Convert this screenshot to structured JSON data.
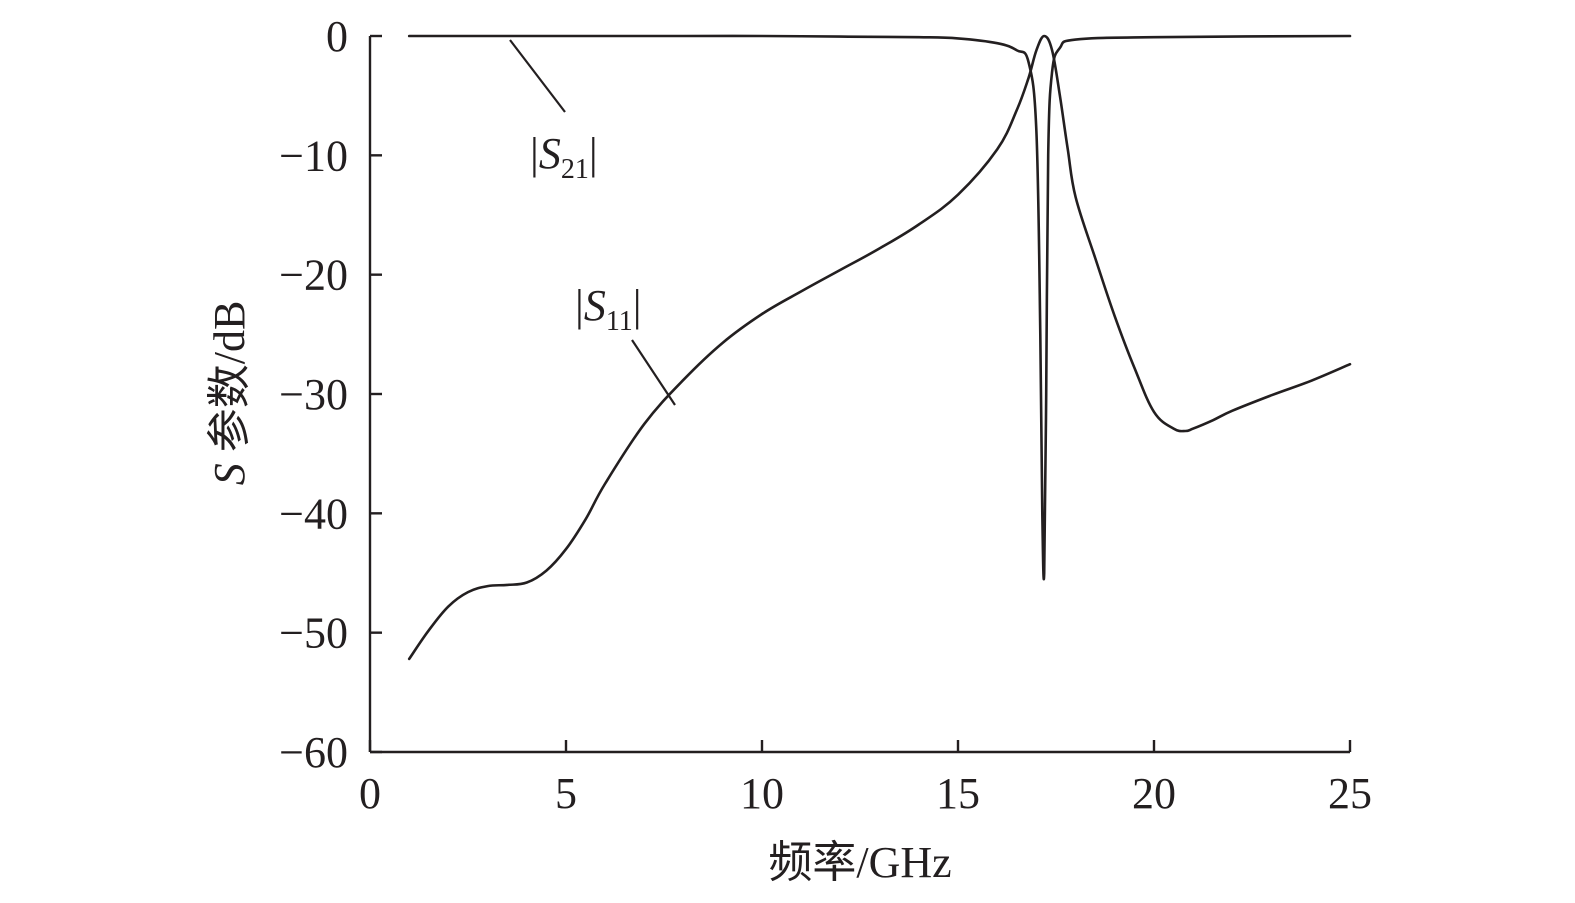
{
  "chart_data": {
    "type": "line",
    "xlabel": "频率/GHz",
    "ylabel": {
      "italic": "S",
      "text": " 参数/dB"
    },
    "xlim": [
      0,
      25
    ],
    "ylim": [
      -60,
      0
    ],
    "xticks": [
      0,
      5,
      10,
      15,
      20,
      25
    ],
    "yticks": [
      0,
      -10,
      -20,
      -30,
      -40,
      -50,
      -60
    ],
    "xtick_labels": [
      "0",
      "5",
      "10",
      "15",
      "20",
      "25"
    ],
    "ytick_labels": [
      "0",
      "−10",
      "−20",
      "−30",
      "−40",
      "−50",
      "−60"
    ],
    "grid": false,
    "legend": "none",
    "series": [
      {
        "name": "|S21|",
        "x": [
          1,
          3,
          5,
          8,
          10,
          12,
          14,
          15,
          16,
          16.5,
          16.8,
          17.0,
          17.1,
          17.15,
          17.2,
          17.25,
          17.3,
          17.4,
          17.6,
          18,
          20,
          25
        ],
        "y": [
          0,
          0,
          0,
          0,
          0,
          -0.05,
          -0.1,
          -0.2,
          -0.6,
          -1.2,
          -2.2,
          -8,
          -25,
          -40,
          -45,
          -30,
          -10,
          -3,
          -1,
          -0.3,
          -0.1,
          0
        ]
      },
      {
        "name": "|S11|",
        "x": [
          1,
          1.5,
          2,
          2.5,
          3,
          3.5,
          4,
          4.5,
          5,
          5.5,
          6,
          7,
          8,
          9,
          10,
          11,
          12,
          13,
          14,
          15,
          16,
          16.5,
          16.8,
          17.0,
          17.2,
          17.4,
          17.6,
          17.8,
          18,
          18.5,
          19,
          19.5,
          20,
          20.5,
          20.8,
          21,
          21.5,
          22,
          23,
          24,
          25
        ],
        "y": [
          -52.2,
          -49.8,
          -47.8,
          -46.6,
          -46.1,
          -46.0,
          -45.8,
          -44.8,
          -43.0,
          -40.5,
          -37.5,
          -32.5,
          -28.8,
          -25.7,
          -23.3,
          -21.4,
          -19.6,
          -17.8,
          -15.8,
          -13.3,
          -9.5,
          -6.2,
          -3.5,
          -1.2,
          0,
          -1.2,
          -5.0,
          -9.5,
          -13.5,
          -18.6,
          -23.5,
          -27.8,
          -31.5,
          -32.9,
          -33.1,
          -32.9,
          -32.2,
          -31.4,
          -30.1,
          -28.9,
          -27.5
        ]
      }
    ],
    "annotations": [
      {
        "series": "|S21|",
        "label": "S",
        "sub": "21"
      },
      {
        "series": "|S11|",
        "label": "S",
        "sub": "11"
      }
    ]
  }
}
